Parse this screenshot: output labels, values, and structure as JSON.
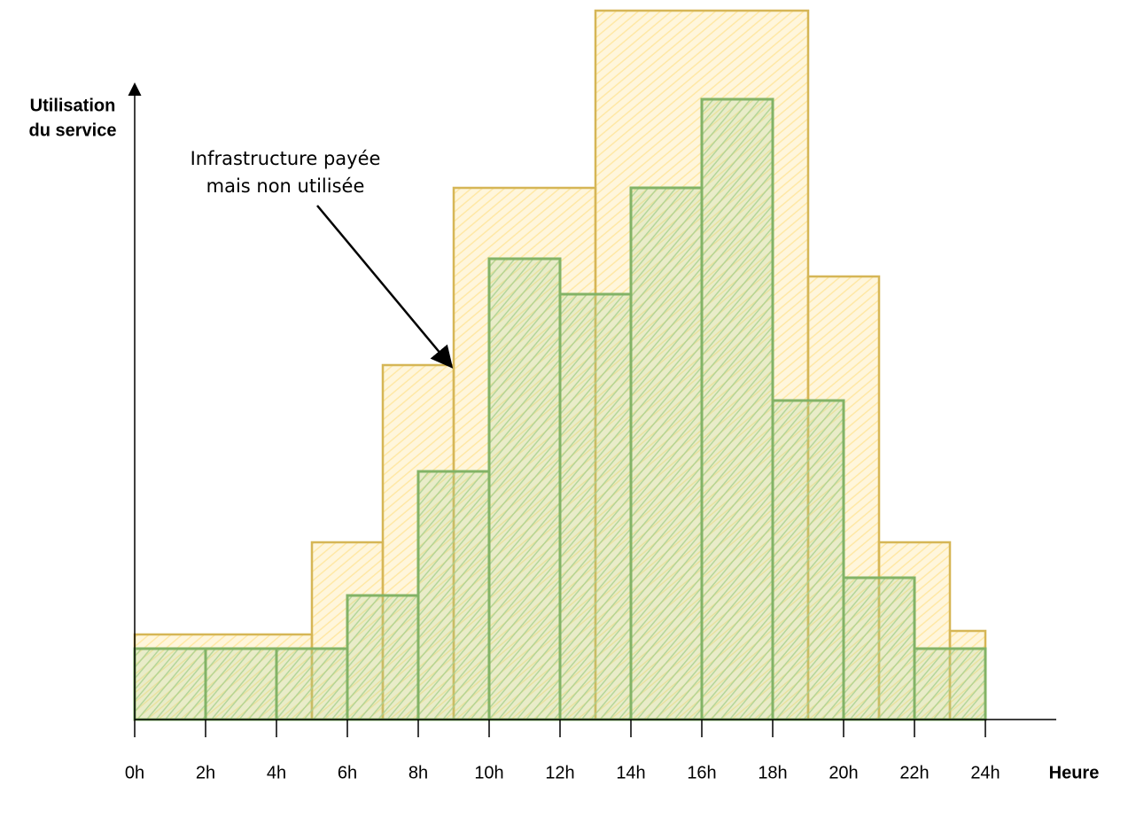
{
  "chart_data": {
    "type": "histogram",
    "ylabel": [
      "Utilisation",
      "du service"
    ],
    "xlabel": "Heure",
    "annotation": [
      "Infrastructure payée",
      "mais non utilisée"
    ],
    "xlim": [
      0,
      24
    ],
    "ylim": [
      0,
      100
    ],
    "xticks": [
      {
        "value": 0,
        "label": "0h"
      },
      {
        "value": 2,
        "label": "2h"
      },
      {
        "value": 4,
        "label": "4h"
      },
      {
        "value": 6,
        "label": "6h"
      },
      {
        "value": 8,
        "label": "8h"
      },
      {
        "value": 10,
        "label": "10h"
      },
      {
        "value": 12,
        "label": "12h"
      },
      {
        "value": 14,
        "label": "14h"
      },
      {
        "value": 16,
        "label": "16h"
      },
      {
        "value": 18,
        "label": "18h"
      },
      {
        "value": 20,
        "label": "20h"
      },
      {
        "value": 22,
        "label": "22h"
      },
      {
        "value": 24,
        "label": "24h"
      }
    ],
    "series": [
      {
        "color": "#d6b656",
        "fill": "#ffe599",
        "bins": [
          0,
          5,
          7,
          9,
          13,
          19,
          21,
          23,
          24
        ],
        "values": [
          12,
          25,
          50,
          75,
          100,
          62.5,
          25,
          12.5
        ]
      },
      {
        "color": "#82b366",
        "fill": "#a9d18e",
        "bins": [
          0,
          2,
          4,
          6,
          8,
          10,
          12,
          14,
          16,
          18,
          20,
          22,
          24
        ],
        "values": [
          10,
          10,
          10,
          17.5,
          35,
          65,
          60,
          75,
          87.5,
          45,
          20,
          10
        ]
      }
    ]
  }
}
